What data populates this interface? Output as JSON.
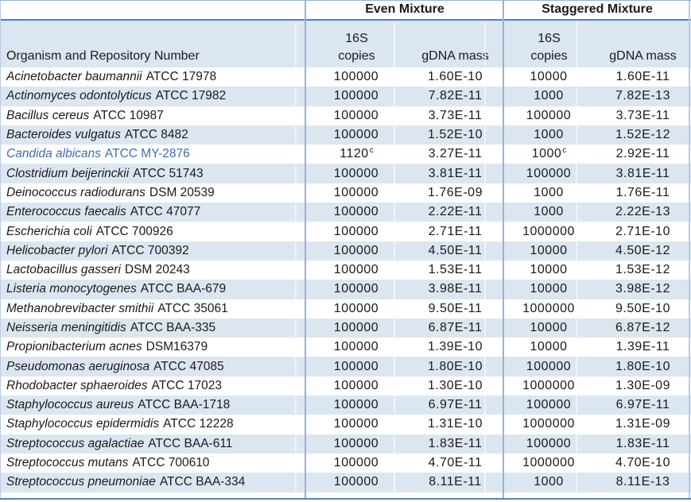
{
  "colors": {
    "stripe": "#dce6f1",
    "divider": "#95b3d7",
    "rule": "#4f81bd",
    "edge": "#b8cce4",
    "text": "#1a1a1a",
    "highlight_text": "#3e6cb3"
  },
  "header": {
    "even_group": "Even Mixture",
    "staggered_group": "Staggered Mixture",
    "organism_col": "Organism and Repository Number",
    "copies_line1": "16S",
    "copies_line2": "copies",
    "gdna_col": "gDNA mass"
  },
  "rows": [
    {
      "name": "Acinetobacter baumannii",
      "acc": "ATCC 17978",
      "even_copies": "100000",
      "even_gdna": "1.60E-10",
      "stag_copies": "10000",
      "stag_gdna": "1.60E-11"
    },
    {
      "name": "Actinomyces odontolyticus",
      "acc": "ATCC 17982",
      "even_copies": "100000",
      "even_gdna": "7.82E-11",
      "stag_copies": "1000",
      "stag_gdna": "7.82E-13"
    },
    {
      "name": "Bacillus cereus",
      "acc": "ATCC 10987",
      "even_copies": "100000",
      "even_gdna": "3.73E-11",
      "stag_copies": "100000",
      "stag_gdna": "3.73E-11"
    },
    {
      "name": "Bacteroides vulgatus",
      "acc": "ATCC 8482",
      "even_copies": "100000",
      "even_gdna": "1.52E-10",
      "stag_copies": "1000",
      "stag_gdna": "1.52E-12"
    },
    {
      "name": "Candida albicans",
      "acc": "ATCC MY-2876",
      "highlight": true,
      "even_copies": "1120",
      "even_sup": "c",
      "even_gdna": "3.27E-11",
      "stag_copies": "1000",
      "stag_sup": "c",
      "stag_gdna": "2.92E-11"
    },
    {
      "name": "Clostridium beijerinckii",
      "acc": "ATCC 51743",
      "even_copies": "100000",
      "even_gdna": "3.81E-11",
      "stag_copies": "100000",
      "stag_gdna": "3.81E-11"
    },
    {
      "name": "Deinococcus radiodurans",
      "acc": "DSM 20539",
      "even_copies": "100000",
      "even_gdna": "1.76E-09",
      "stag_copies": "1000",
      "stag_gdna": "1.76E-11"
    },
    {
      "name": "Enterococcus faecalis",
      "acc": "ATCC 47077",
      "even_copies": "100000",
      "even_gdna": "2.22E-11",
      "stag_copies": "1000",
      "stag_gdna": "2.22E-13"
    },
    {
      "name": "Escherichia coli",
      "acc": "ATCC 700926",
      "even_copies": "100000",
      "even_gdna": "2.71E-11",
      "stag_copies": "1000000",
      "stag_gdna": "2.71E-10"
    },
    {
      "name": "Helicobacter pylori",
      "acc": "ATCC 700392",
      "even_copies": "100000",
      "even_gdna": "4.50E-11",
      "stag_copies": "10000",
      "stag_gdna": "4.50E-12"
    },
    {
      "name": "Lactobacillus gasseri",
      "acc": "DSM 20243",
      "even_copies": "100000",
      "even_gdna": "1.53E-11",
      "stag_copies": "10000",
      "stag_gdna": "1.53E-12"
    },
    {
      "name": "Listeria monocytogenes",
      "acc": "ATCC BAA-679",
      "even_copies": "100000",
      "even_gdna": "3.98E-11",
      "stag_copies": "10000",
      "stag_gdna": "3.98E-12"
    },
    {
      "name": "Methanobrevibacter smithii",
      "acc": "ATCC 35061",
      "even_copies": "100000",
      "even_gdna": "9.50E-11",
      "stag_copies": "1000000",
      "stag_gdna": "9.50E-10"
    },
    {
      "name": "Neisseria meningitidis",
      "acc": "ATCC BAA-335",
      "even_copies": "100000",
      "even_gdna": "6.87E-11",
      "stag_copies": "10000",
      "stag_gdna": "6.87E-12"
    },
    {
      "name": "Propionibacterium acnes",
      "acc": "DSM16379",
      "even_copies": "100000",
      "even_gdna": "1.39E-10",
      "stag_copies": "10000",
      "stag_gdna": "1.39E-11"
    },
    {
      "name": "Pseudomonas aeruginosa",
      "acc": "ATCC 47085",
      "even_copies": "100000",
      "even_gdna": "1.80E-10",
      "stag_copies": "100000",
      "stag_gdna": "1.80E-10"
    },
    {
      "name": "Rhodobacter sphaeroides",
      "acc": "ATCC 17023",
      "even_copies": "100000",
      "even_gdna": "1.30E-10",
      "stag_copies": "1000000",
      "stag_gdna": "1.30E-09"
    },
    {
      "name": "Staphylococcus aureus",
      "acc": "ATCC BAA-1718",
      "even_copies": "100000",
      "even_gdna": "6.97E-11",
      "stag_copies": "100000",
      "stag_gdna": "6.97E-11"
    },
    {
      "name": "Staphylococcus epidermidis",
      "acc": "ATCC 12228",
      "even_copies": "100000",
      "even_gdna": "1.31E-10",
      "stag_copies": "1000000",
      "stag_gdna": "1.31E-09"
    },
    {
      "name": "Streptococcus agalactiae",
      "acc": "ATCC BAA-611",
      "even_copies": "100000",
      "even_gdna": "1.83E-11",
      "stag_copies": "100000",
      "stag_gdna": "1.83E-11"
    },
    {
      "name": "Streptococcus mutans",
      "acc": "ATCC 700610",
      "even_copies": "100000",
      "even_gdna": "4.70E-11",
      "stag_copies": "1000000",
      "stag_gdna": "4.70E-10"
    },
    {
      "name": "Streptococcus pneumoniae",
      "acc": "ATCC BAA-334",
      "even_copies": "100000",
      "even_gdna": "8.11E-11",
      "stag_copies": "1000",
      "stag_gdna": "8.11E-13"
    }
  ]
}
